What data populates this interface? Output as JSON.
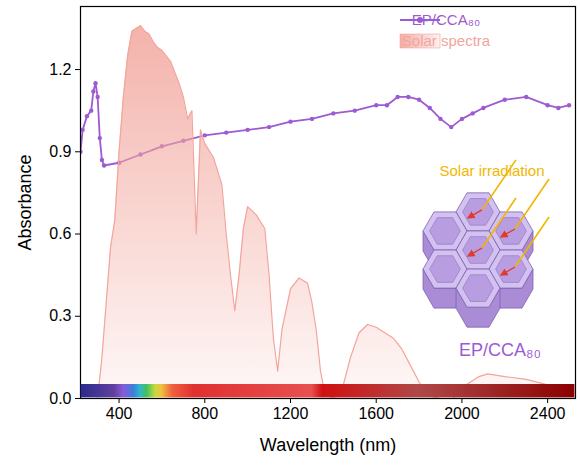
{
  "chart_data": {
    "type": "line",
    "x_label": "Wavelength (nm)",
    "y_label": "Absorbance",
    "xlim": [
      220,
      2530
    ],
    "xticks": [
      400,
      800,
      1200,
      1600,
      2000,
      2400
    ],
    "ylim": [
      0,
      1.43
    ],
    "yticks": [
      {
        "value": 0,
        "label": "0.0"
      },
      0.3,
      0.6,
      0.9,
      1.2
    ],
    "legend": "top-right",
    "grid": false,
    "series": [
      {
        "name": "EP/CCA₈₀",
        "type": "line",
        "color": "#9d5bd2",
        "marker": "circle",
        "x": [
          220,
          230,
          250,
          270,
          280,
          290,
          300,
          310,
          320,
          330,
          400,
          500,
          600,
          700,
          800,
          900,
          1000,
          1100,
          1200,
          1300,
          1400,
          1500,
          1600,
          1650,
          1700,
          1750,
          1800,
          1850,
          1900,
          1950,
          2000,
          2050,
          2100,
          2200,
          2300,
          2400,
          2450,
          2500
        ],
        "values": [
          0.9,
          0.98,
          1.03,
          1.05,
          1.12,
          1.15,
          1.1,
          0.95,
          0.87,
          0.85,
          0.86,
          0.89,
          0.92,
          0.94,
          0.96,
          0.97,
          0.98,
          0.99,
          1.01,
          1.02,
          1.04,
          1.05,
          1.07,
          1.07,
          1.1,
          1.1,
          1.09,
          1.06,
          1.02,
          0.99,
          1.02,
          1.04,
          1.06,
          1.09,
          1.1,
          1.07,
          1.06,
          1.07
        ]
      },
      {
        "name": "Solar spectra",
        "type": "area",
        "color": "#f2a59c",
        "x": [
          280,
          300,
          320,
          340,
          360,
          380,
          400,
          420,
          440,
          460,
          480,
          500,
          520,
          540,
          560,
          580,
          600,
          640,
          680,
          700,
          720,
          740,
          760,
          780,
          800,
          840,
          880,
          900,
          920,
          940,
          960,
          980,
          1000,
          1040,
          1080,
          1100,
          1120,
          1140,
          1160,
          1200,
          1240,
          1280,
          1300,
          1320,
          1340,
          1360,
          1400,
          1440,
          1480,
          1520,
          1560,
          1600,
          1640,
          1680,
          1720,
          1760,
          1800,
          1840,
          1900,
          1960,
          2000,
          2040,
          2080,
          2120,
          2200,
          2300,
          2400,
          2500
        ],
        "values": [
          0,
          0.0,
          0.15,
          0.35,
          0.55,
          0.65,
          0.9,
          1.1,
          1.25,
          1.34,
          1.35,
          1.36,
          1.34,
          1.33,
          1.3,
          1.28,
          1.27,
          1.23,
          1.15,
          1.1,
          1.02,
          1.05,
          0.6,
          0.98,
          0.93,
          0.88,
          0.78,
          0.6,
          0.45,
          0.32,
          0.45,
          0.62,
          0.7,
          0.67,
          0.62,
          0.45,
          0.22,
          0.1,
          0.25,
          0.4,
          0.44,
          0.42,
          0.35,
          0.25,
          0.1,
          0.02,
          0.0,
          0.03,
          0.15,
          0.24,
          0.27,
          0.26,
          0.24,
          0.22,
          0.18,
          0.12,
          0.06,
          0.01,
          0.0,
          0.0,
          0.04,
          0.06,
          0.08,
          0.09,
          0.08,
          0.07,
          0.05,
          0.03
        ]
      }
    ],
    "annotations": [
      {
        "text": "Solar irradiation",
        "color": "#f2b600"
      },
      {
        "text": "EP/CCA₈₀",
        "color": "#9d5bd2"
      }
    ]
  }
}
